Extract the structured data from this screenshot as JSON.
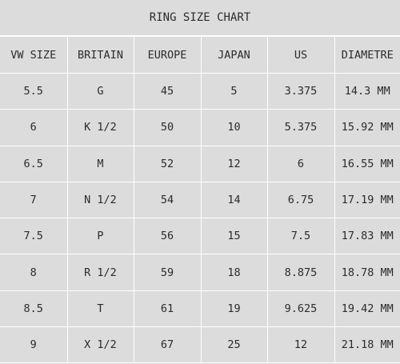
{
  "title": "RING SIZE CHART",
  "headers": [
    "VW SIZE",
    "BRITAIN",
    "EUROPE",
    "JAPAN",
    "US",
    "DIAMETRE"
  ],
  "rows": [
    [
      "5.5",
      "G",
      "45",
      "5",
      "3.375",
      "14.3 MM"
    ],
    [
      "6",
      "K 1/2",
      "50",
      "10",
      "5.375",
      "15.92 MM"
    ],
    [
      "6.5",
      "M",
      "52",
      "12",
      "6",
      "16.55 MM"
    ],
    [
      "7",
      "N 1/2",
      "54",
      "14",
      "6.75",
      "17.19 MM"
    ],
    [
      "7.5",
      "P",
      "56",
      "15",
      "7.5",
      "17.83 MM"
    ],
    [
      "8",
      "R 1/2",
      "59",
      "18",
      "8.875",
      "18.78 MM"
    ],
    [
      "8.5",
      "T",
      "61",
      "19",
      "9.625",
      "19.42 MM"
    ],
    [
      "9",
      "X 1/2",
      "67",
      "25",
      "12",
      "21.18 MM"
    ]
  ],
  "colors": {
    "background": "#dcdcdc",
    "grid": "#ffffff",
    "text": "#2b2b2b"
  }
}
